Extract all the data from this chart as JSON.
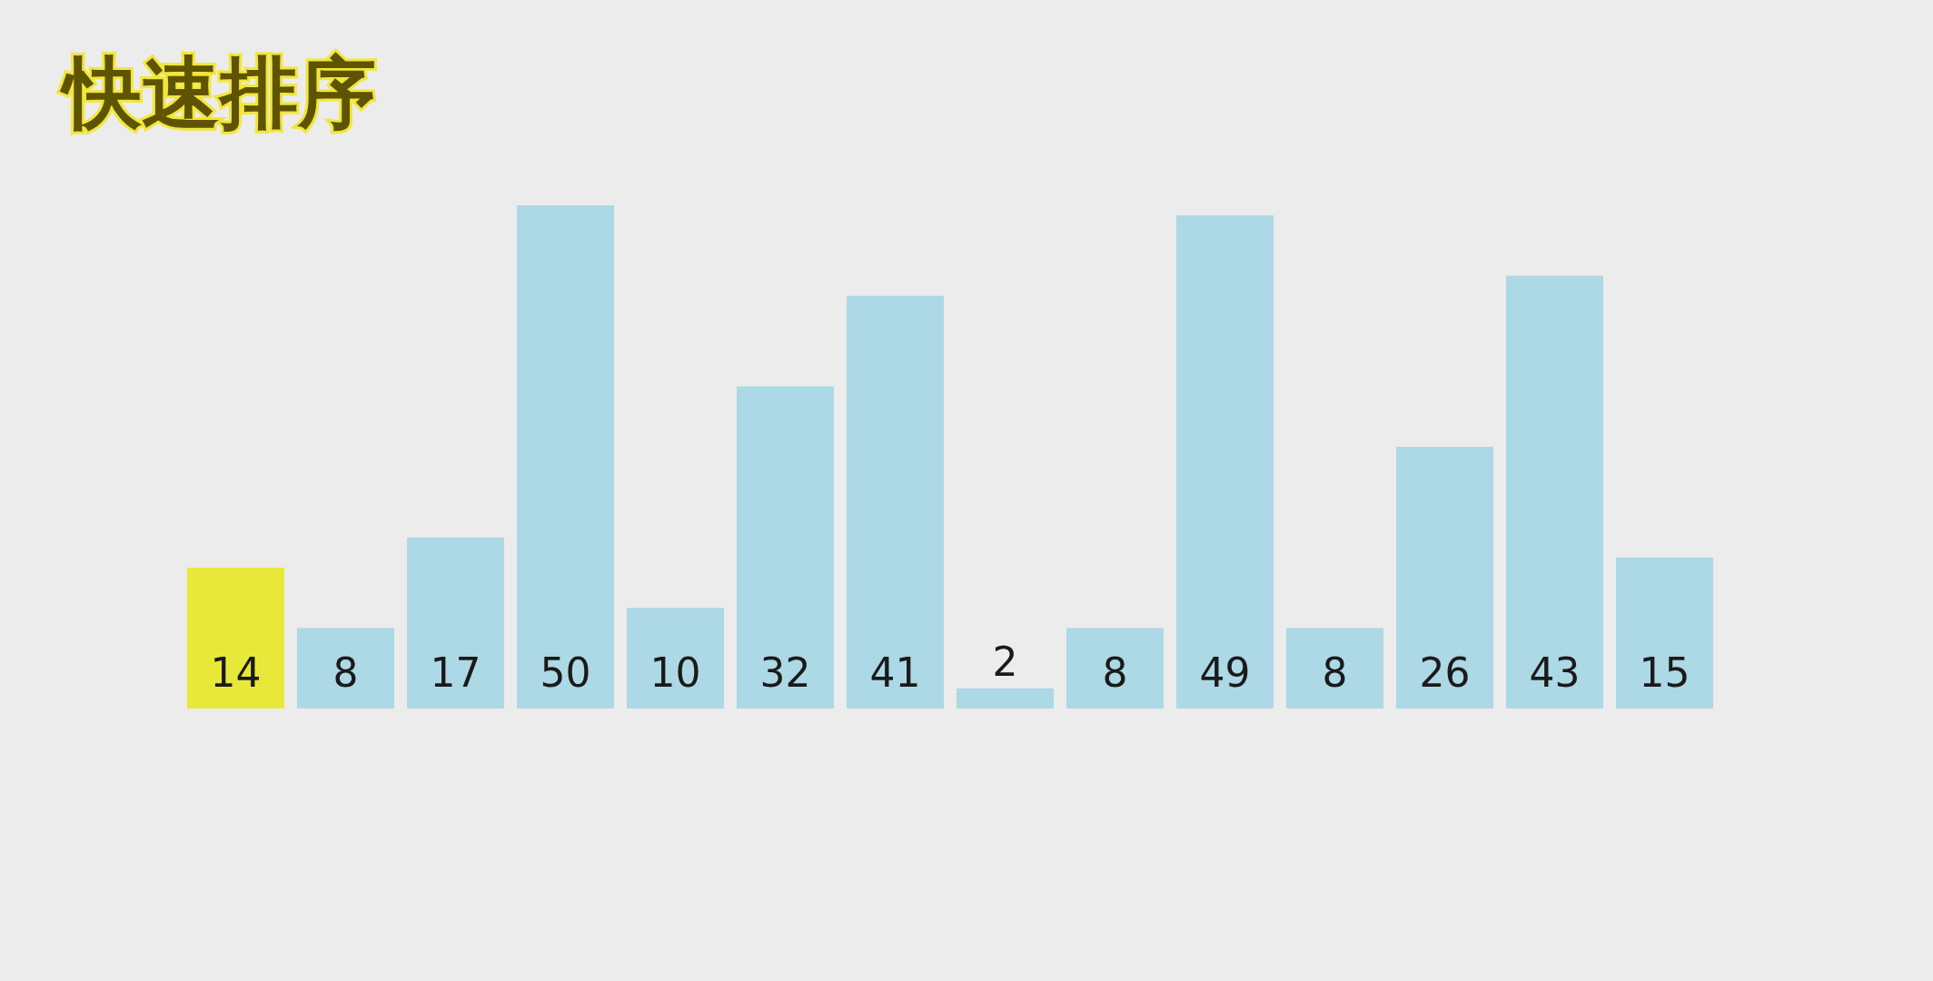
{
  "chart_data": {
    "type": "bar",
    "title": "快速排序",
    "categories": [
      null,
      null,
      null,
      null,
      null,
      null,
      null,
      null,
      null,
      null,
      null,
      null,
      null,
      null
    ],
    "values": [
      14,
      8,
      17,
      50,
      10,
      32,
      41,
      2,
      8,
      49,
      8,
      26,
      43,
      15
    ],
    "colors": [
      "#e8e83a",
      "#add8e6",
      "#add8e6",
      "#add8e6",
      "#add8e6",
      "#add8e6",
      "#add8e6",
      "#add8e6",
      "#add8e6",
      "#add8e6",
      "#add8e6",
      "#add8e6",
      "#add8e6",
      "#add8e6"
    ],
    "data_labels": true
  }
}
